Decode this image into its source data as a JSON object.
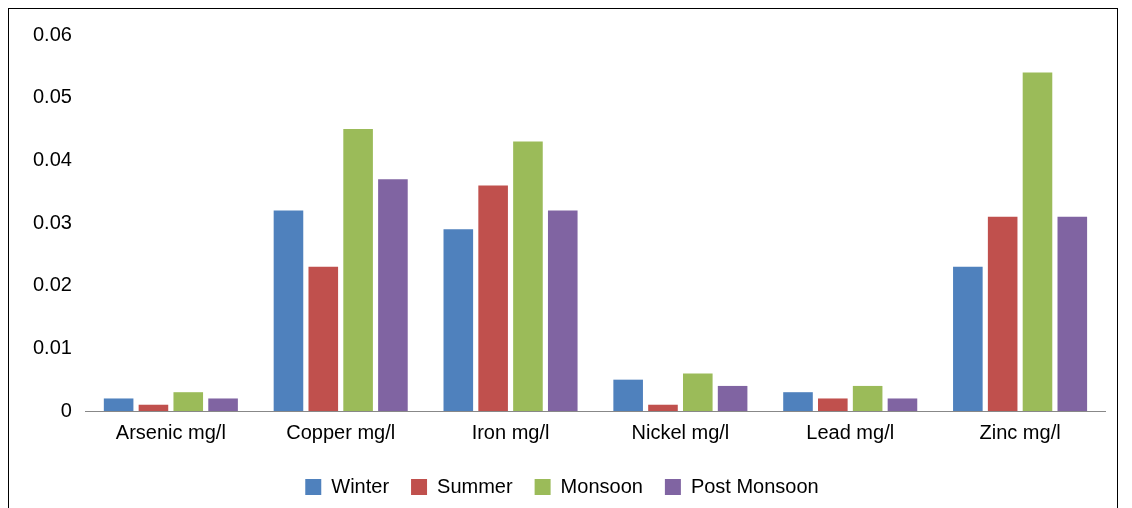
{
  "chart_data": {
    "type": "bar",
    "categories": [
      "Arsenic mg/l",
      "Copper mg/l",
      "Iron mg/l",
      "Nickel mg/l",
      "Lead mg/l",
      "Zinc mg/l"
    ],
    "series": [
      {
        "name": "Winter",
        "color": "#4f81bd",
        "values": [
          0.002,
          0.032,
          0.029,
          0.005,
          0.003,
          0.023
        ]
      },
      {
        "name": "Summer",
        "color": "#c0504d",
        "values": [
          0.001,
          0.023,
          0.036,
          0.001,
          0.002,
          0.031
        ]
      },
      {
        "name": "Monsoon",
        "color": "#9bbb59",
        "values": [
          0.003,
          0.045,
          0.043,
          0.006,
          0.004,
          0.054
        ]
      },
      {
        "name": "Post Monsoon",
        "color": "#8064a2",
        "values": [
          0.002,
          0.037,
          0.032,
          0.004,
          0.002,
          0.031
        ]
      }
    ],
    "ylim": [
      0,
      0.06
    ],
    "yticks": [
      0,
      0.01,
      0.02,
      0.03,
      0.04,
      0.05,
      0.06
    ],
    "grid": false,
    "legend": "bottom"
  }
}
